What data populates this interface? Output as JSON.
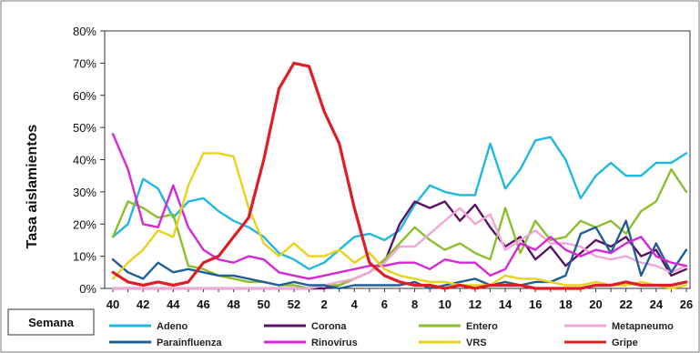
{
  "chart_data": {
    "type": "line",
    "ylabel": "Tasa aislamientos",
    "xlabel": "Semana",
    "x": [
      40,
      41,
      42,
      43,
      44,
      45,
      46,
      47,
      48,
      49,
      50,
      51,
      52,
      1,
      2,
      3,
      4,
      5,
      6,
      7,
      8,
      9,
      10,
      11,
      12,
      13,
      14,
      15,
      16,
      17,
      18,
      19,
      20,
      21,
      22,
      23,
      24,
      25,
      26
    ],
    "x_tick_labels": [
      "40",
      "42",
      "44",
      "46",
      "48",
      "50",
      "52",
      "2",
      "4",
      "6",
      "8",
      "10",
      "12",
      "14",
      "16",
      "18",
      "20",
      "22",
      "24",
      "26"
    ],
    "y_tick_labels": [
      "0%",
      "10%",
      "20%",
      "30%",
      "40%",
      "50%",
      "60%",
      "70%",
      "80%"
    ],
    "ylim": [
      0,
      80
    ],
    "grid": false,
    "legend_position": "bottom",
    "series": [
      {
        "name": "Adeno",
        "color": "#1fb8e0",
        "values": [
          16,
          20,
          34,
          31,
          22,
          27,
          28,
          24,
          21,
          19,
          16,
          11,
          9,
          6,
          8,
          12,
          16,
          17,
          15,
          18,
          26,
          32,
          30,
          29,
          29,
          45,
          31,
          37,
          46,
          47,
          40,
          28,
          35,
          39,
          35,
          35,
          39,
          39,
          42
        ]
      },
      {
        "name": "Corona",
        "color": "#5b1464",
        "values": [
          0,
          0,
          0,
          0,
          0,
          0,
          0,
          0,
          0,
          0,
          0,
          0,
          0,
          0,
          0,
          1,
          3,
          5,
          8,
          20,
          27,
          25,
          27,
          21,
          26,
          19,
          13,
          16,
          9,
          13,
          7,
          11,
          15,
          13,
          16,
          10,
          12,
          4,
          6
        ]
      },
      {
        "name": "Entero",
        "color": "#8bbf2e",
        "values": [
          16,
          27,
          25,
          22,
          23,
          7,
          6,
          4,
          3,
          2,
          2,
          1,
          1,
          0,
          1,
          1,
          3,
          5,
          9,
          14,
          19,
          15,
          12,
          14,
          11,
          9,
          25,
          11,
          21,
          15,
          16,
          21,
          19,
          21,
          17,
          24,
          27,
          37,
          30
        ]
      },
      {
        "name": "Metapneumo",
        "color": "#f2a6d8",
        "values": [
          0,
          0,
          0,
          0,
          0,
          0,
          0,
          0,
          0,
          0,
          0,
          0,
          0,
          0,
          1,
          2,
          3,
          5,
          8,
          13,
          13,
          17,
          21,
          25,
          20,
          23,
          12,
          15,
          18,
          14,
          14,
          13,
          10,
          9,
          10,
          8,
          7,
          5,
          7
        ]
      },
      {
        "name": "Parainfluenza",
        "color": "#1f5f96",
        "values": [
          9,
          5,
          3,
          8,
          5,
          6,
          5,
          4,
          4,
          3,
          2,
          1,
          2,
          1,
          1,
          0,
          1,
          1,
          1,
          1,
          2,
          0,
          1,
          2,
          3,
          1,
          2,
          1,
          2,
          2,
          4,
          17,
          19,
          11,
          21,
          4,
          14,
          5,
          12
        ]
      },
      {
        "name": "Rinovirus",
        "color": "#d628d6",
        "values": [
          48,
          37,
          20,
          19,
          32,
          19,
          12,
          9,
          8,
          10,
          9,
          5,
          4,
          3,
          4,
          5,
          6,
          7,
          7,
          8,
          8,
          6,
          9,
          8,
          8,
          4,
          6,
          14,
          12,
          16,
          12,
          10,
          12,
          11,
          14,
          16,
          10,
          8,
          7
        ]
      },
      {
        "name": "VRS",
        "color": "#e8d21a",
        "values": [
          3,
          8,
          12,
          18,
          16,
          32,
          42,
          42,
          41,
          25,
          14,
          10,
          14,
          10,
          10,
          12,
          8,
          11,
          6,
          4,
          3,
          2,
          2,
          1,
          1,
          1,
          4,
          3,
          3,
          2,
          1,
          1,
          2,
          1,
          1,
          2,
          1,
          0,
          1
        ]
      },
      {
        "name": "Gripe",
        "color": "#e01c24",
        "values": [
          5,
          2,
          1,
          2,
          1,
          2,
          8,
          10,
          16,
          22,
          40,
          62,
          70,
          69,
          55,
          45,
          25,
          8,
          4,
          2,
          1,
          1,
          0,
          1,
          0,
          1,
          1,
          1,
          0,
          0,
          0,
          0,
          1,
          1,
          2,
          1,
          1,
          1,
          2
        ]
      }
    ]
  }
}
